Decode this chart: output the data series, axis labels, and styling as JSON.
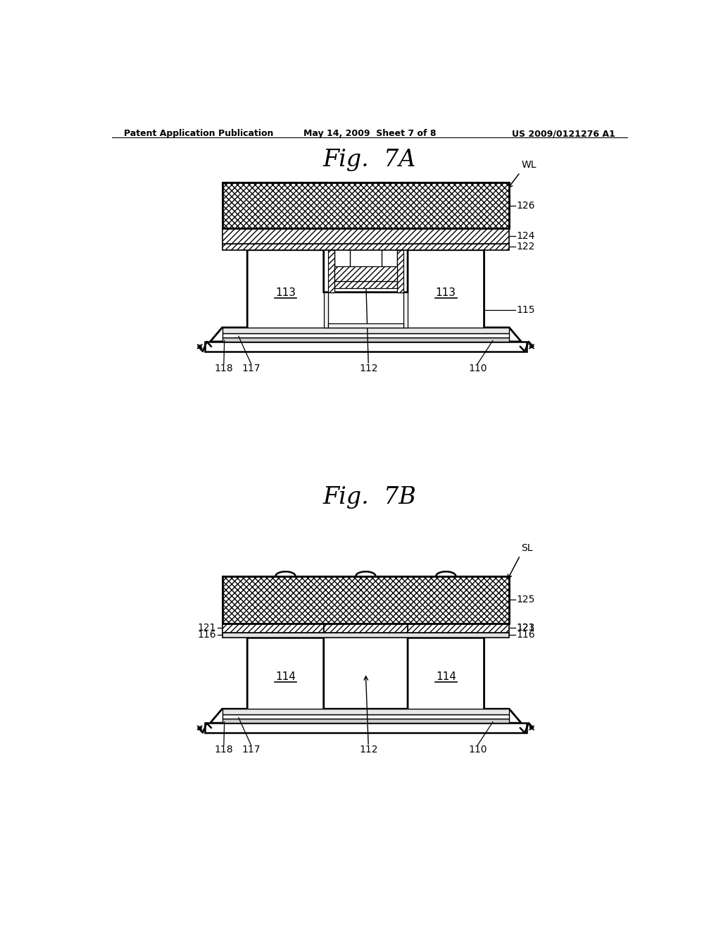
{
  "bg": "#ffffff",
  "hdr_l": "Patent Application Publication",
  "hdr_m": "May 14, 2009  Sheet 7 of 8",
  "hdr_r": "US 2009/0121276 A1",
  "title_a": "Fig.  7A",
  "title_b": "Fig.  7B",
  "lbl_126": "126",
  "lbl_124": "124",
  "lbl_122": "122",
  "lbl_115": "115",
  "lbl_113": "113",
  "lbl_118": "118",
  "lbl_117": "117",
  "lbl_112": "112",
  "lbl_110": "110",
  "lbl_WL": "WL",
  "lbl_SL": "SL",
  "lbl_125": "125",
  "lbl_123": "123",
  "lbl_121": "121",
  "lbl_116": "116",
  "lbl_114": "114"
}
